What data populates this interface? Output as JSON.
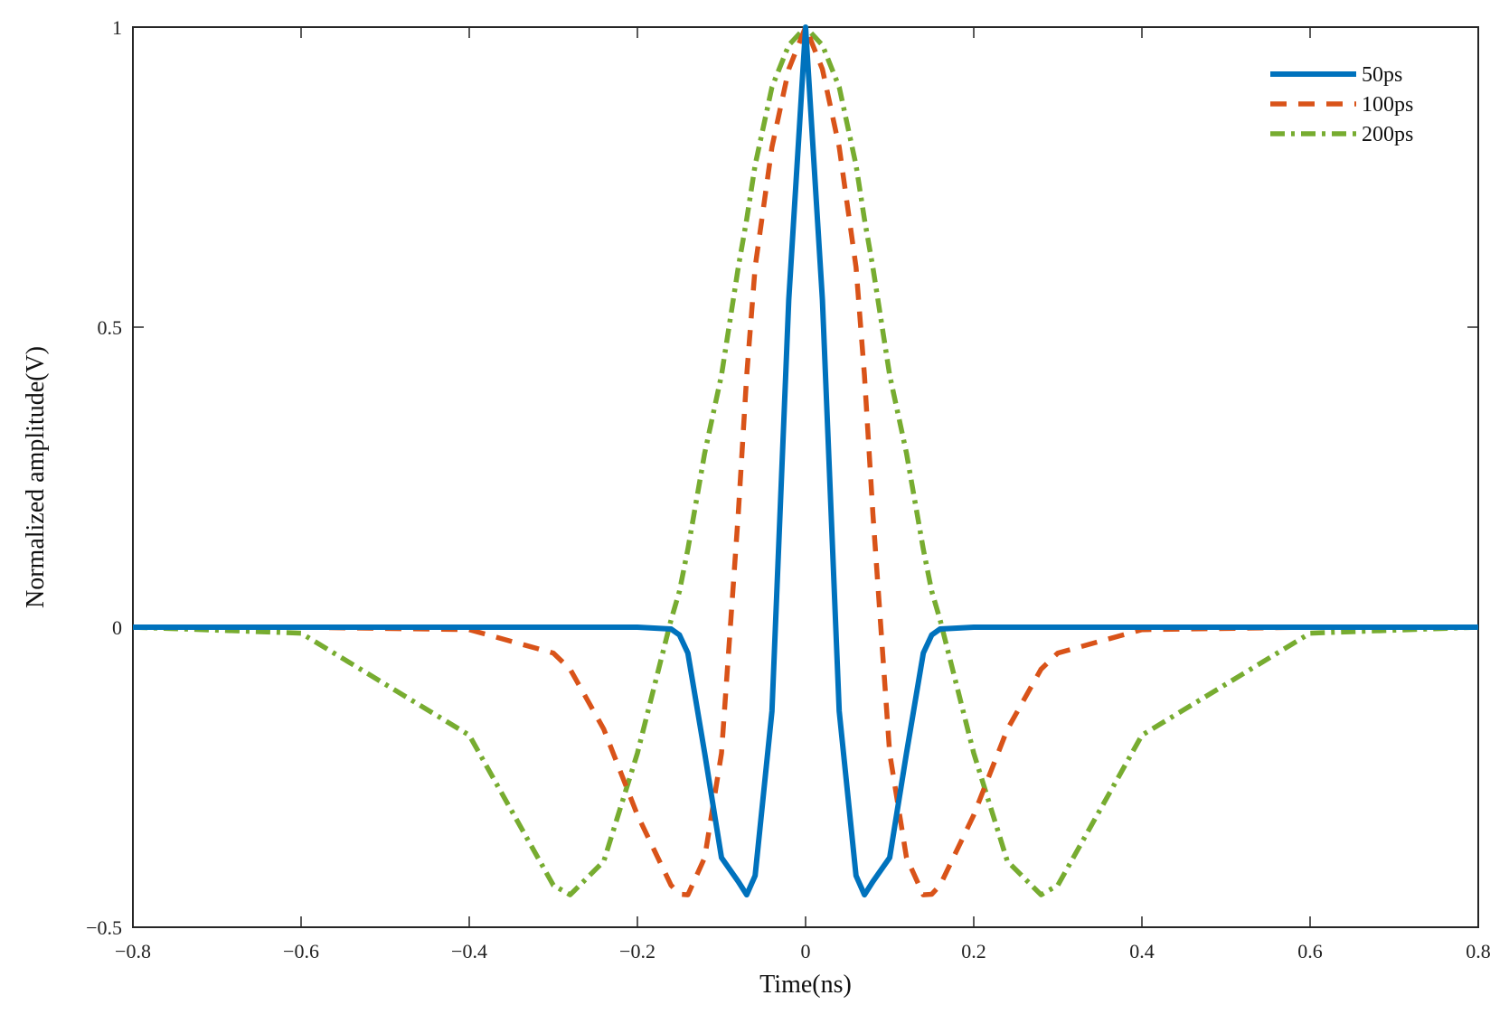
{
  "chart_data": {
    "type": "line",
    "title": "",
    "xlabel": "Time(ns)",
    "ylabel": "Normalized amplitude(V)",
    "xlim": [
      -0.8,
      0.8
    ],
    "ylim": [
      -0.5,
      1
    ],
    "x_ticks": [
      -0.8,
      -0.6,
      -0.4,
      -0.2,
      0,
      0.2,
      0.4,
      0.6,
      0.8
    ],
    "x_tick_labels": [
      "−0.8",
      "−0.6",
      "−0.4",
      "−0.2",
      "0",
      "0.2",
      "0.4",
      "0.6",
      "0.8"
    ],
    "y_ticks": [
      -0.5,
      0,
      0.5,
      1
    ],
    "y_tick_labels": [
      "−0.5",
      "0",
      "0.5",
      "1"
    ],
    "grid": false,
    "legend_position": "top-right",
    "x": [
      -0.8,
      -0.6,
      -0.4,
      -0.3,
      -0.28,
      -0.24,
      -0.2,
      -0.16,
      -0.15,
      -0.14,
      -0.12,
      -0.1,
      -0.08,
      -0.07,
      -0.06,
      -0.04,
      -0.02,
      0,
      0.02,
      0.04,
      0.06,
      0.07,
      0.08,
      0.1,
      0.12,
      0.14,
      0.15,
      0.16,
      0.2,
      0.24,
      0.28,
      0.3,
      0.4,
      0.6,
      0.8
    ],
    "series": [
      {
        "name": "50ps",
        "color": "#0072BD",
        "style": "solid",
        "y": [
          0,
          0,
          0,
          0,
          0,
          0,
          0,
          -0.003,
          -0.013,
          -0.043,
          -0.21,
          -0.384,
          -0.424,
          -0.446,
          -0.414,
          -0.14,
          0.546,
          1,
          0.546,
          -0.14,
          -0.414,
          -0.446,
          -0.424,
          -0.384,
          -0.21,
          -0.043,
          -0.013,
          -0.003,
          0,
          0,
          0,
          0,
          0,
          0,
          0
        ]
      },
      {
        "name": "100ps",
        "color": "#D95319",
        "style": "dashed",
        "y": [
          0,
          0,
          -0.004,
          -0.043,
          -0.07,
          -0.17,
          -0.313,
          -0.43,
          -0.445,
          -0.446,
          -0.384,
          -0.21,
          0.19,
          0.42,
          0.6,
          0.8,
          0.93,
          1,
          0.93,
          0.8,
          0.6,
          0.42,
          0.19,
          -0.21,
          -0.384,
          -0.446,
          -0.445,
          -0.43,
          -0.313,
          -0.17,
          -0.07,
          -0.043,
          -0.004,
          0,
          0
        ]
      },
      {
        "name": "200ps",
        "color": "#77AC30",
        "style": "dashdot",
        "y": [
          0,
          -0.01,
          -0.18,
          -0.43,
          -0.446,
          -0.39,
          -0.21,
          0.012,
          0.06,
          0.13,
          0.29,
          0.42,
          0.6,
          0.68,
          0.77,
          0.9,
          0.97,
          1,
          0.97,
          0.9,
          0.77,
          0.68,
          0.6,
          0.42,
          0.29,
          0.13,
          0.06,
          0.012,
          -0.21,
          -0.39,
          -0.446,
          -0.43,
          -0.18,
          -0.01,
          0
        ]
      }
    ]
  }
}
